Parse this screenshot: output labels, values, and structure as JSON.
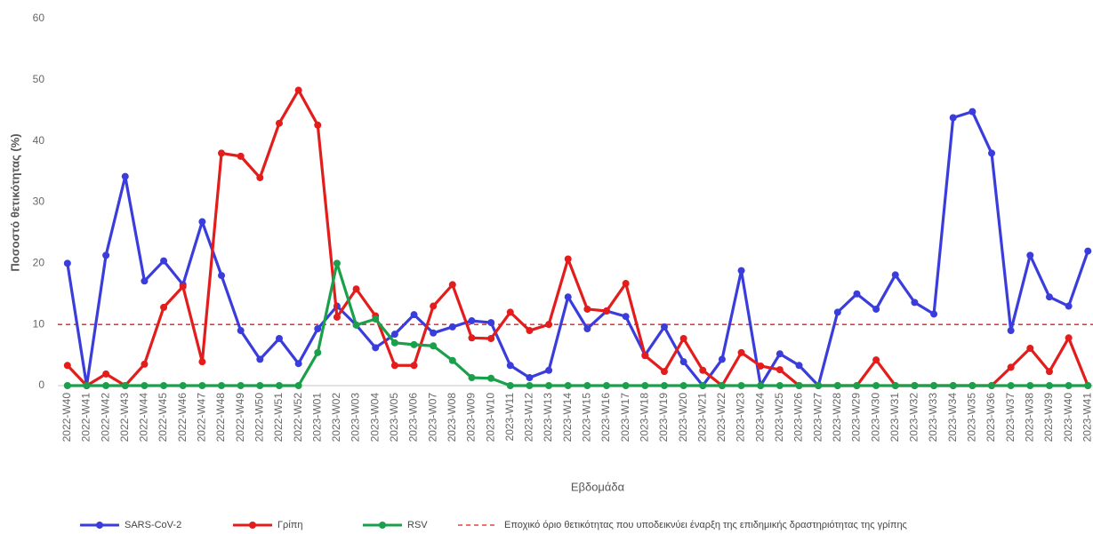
{
  "chart_data": {
    "type": "line",
    "y_label": "Ποσοστό θετικότητας (%)",
    "x_label": "Εβδομάδα",
    "categories": [
      "2022-W40",
      "2022-W41",
      "2022-W42",
      "2022-W43",
      "2022-W44",
      "2022-W45",
      "2022-W46",
      "2022-W47",
      "2022-W48",
      "2022-W49",
      "2022-W50",
      "2022-W51",
      "2022-W52",
      "2023-W01",
      "2023-W02",
      "2023-W03",
      "2023-W04",
      "2023-W05",
      "2023-W06",
      "2023-W07",
      "2023-W08",
      "2023-W09",
      "2023-W10",
      "2023-W11",
      "2023-W12",
      "2023-W13",
      "2023-W14",
      "2023-W15",
      "2023-W16",
      "2023-W17",
      "2023-W18",
      "2023-W19",
      "2023-W20",
      "2023-W21",
      "2023-W22",
      "2023-W23",
      "2023-W24",
      "2023-W25",
      "2023-W26",
      "2023-W27",
      "2023-W28",
      "2023-W29",
      "2023-W30",
      "2023-W31",
      "2023-W32",
      "2023-W33",
      "2023-W34",
      "2023-W35",
      "2023-W36",
      "2023-W37",
      "2023-W38",
      "2023-W39",
      "2023-W40",
      "2023-W41"
    ],
    "series": [
      {
        "name": "SARS-CoV-2",
        "color": "#3a3ddb",
        "values": [
          20,
          0,
          21.3,
          34.2,
          17.1,
          20.4,
          16.5,
          26.8,
          18,
          9,
          4.3,
          7.7,
          3.6,
          9.3,
          13,
          9.9,
          6.2,
          8.4,
          11.6,
          8.6,
          9.6,
          10.6,
          10.3,
          3.3,
          1.3,
          2.5,
          14.5,
          9.3,
          12.2,
          11.3,
          5,
          9.6,
          3.9,
          0,
          4.3,
          18.8,
          0,
          5.2,
          3.3,
          0,
          12,
          15,
          12.5,
          18.1,
          13.6,
          11.7,
          43.8,
          44.8,
          38,
          9,
          21.3,
          14.5,
          13,
          22
        ]
      },
      {
        "name": "Γρίπη",
        "color": "#e31c1c",
        "values": [
          3.3,
          0,
          1.9,
          0,
          3.5,
          12.8,
          16.2,
          3.9,
          38,
          37.5,
          34,
          42.9,
          48.3,
          42.6,
          11.2,
          15.8,
          11.4,
          3.3,
          3.3,
          13,
          16.5,
          7.8,
          7.7,
          12,
          9,
          10,
          20.7,
          12.5,
          12.2,
          16.7,
          4.9,
          2.3,
          7.7,
          2.5,
          0,
          5.4,
          3.2,
          2.6,
          0,
          0,
          0,
          0,
          4.2,
          0,
          0,
          0,
          0,
          0,
          0,
          3,
          6.1,
          2.3,
          7.8,
          0
        ]
      },
      {
        "name": "RSV",
        "color": "#1aa04b",
        "values": [
          0,
          0,
          0,
          0,
          0,
          0,
          0,
          0,
          0,
          0,
          0,
          0,
          0,
          5.4,
          20,
          9.9,
          10.9,
          7,
          6.7,
          6.5,
          4.1,
          1.3,
          1.2,
          0,
          0,
          0,
          0,
          0,
          0,
          0,
          0,
          0,
          0,
          0,
          0,
          0,
          0,
          0,
          0,
          0,
          0,
          0,
          0,
          0,
          0,
          0,
          0,
          0,
          0,
          0,
          0,
          0,
          0,
          0
        ]
      }
    ],
    "threshold": {
      "value": 10,
      "color": "#e31c1c",
      "label": "Εποχικό όριο θετικότητας που υποδεικνύει έναρξη της επιδημικής δραστηριότητας της γρίπης"
    },
    "ylim": [
      0,
      60
    ],
    "yticks": [
      0,
      10,
      20,
      30,
      40,
      50,
      60
    ],
    "grid": false
  }
}
